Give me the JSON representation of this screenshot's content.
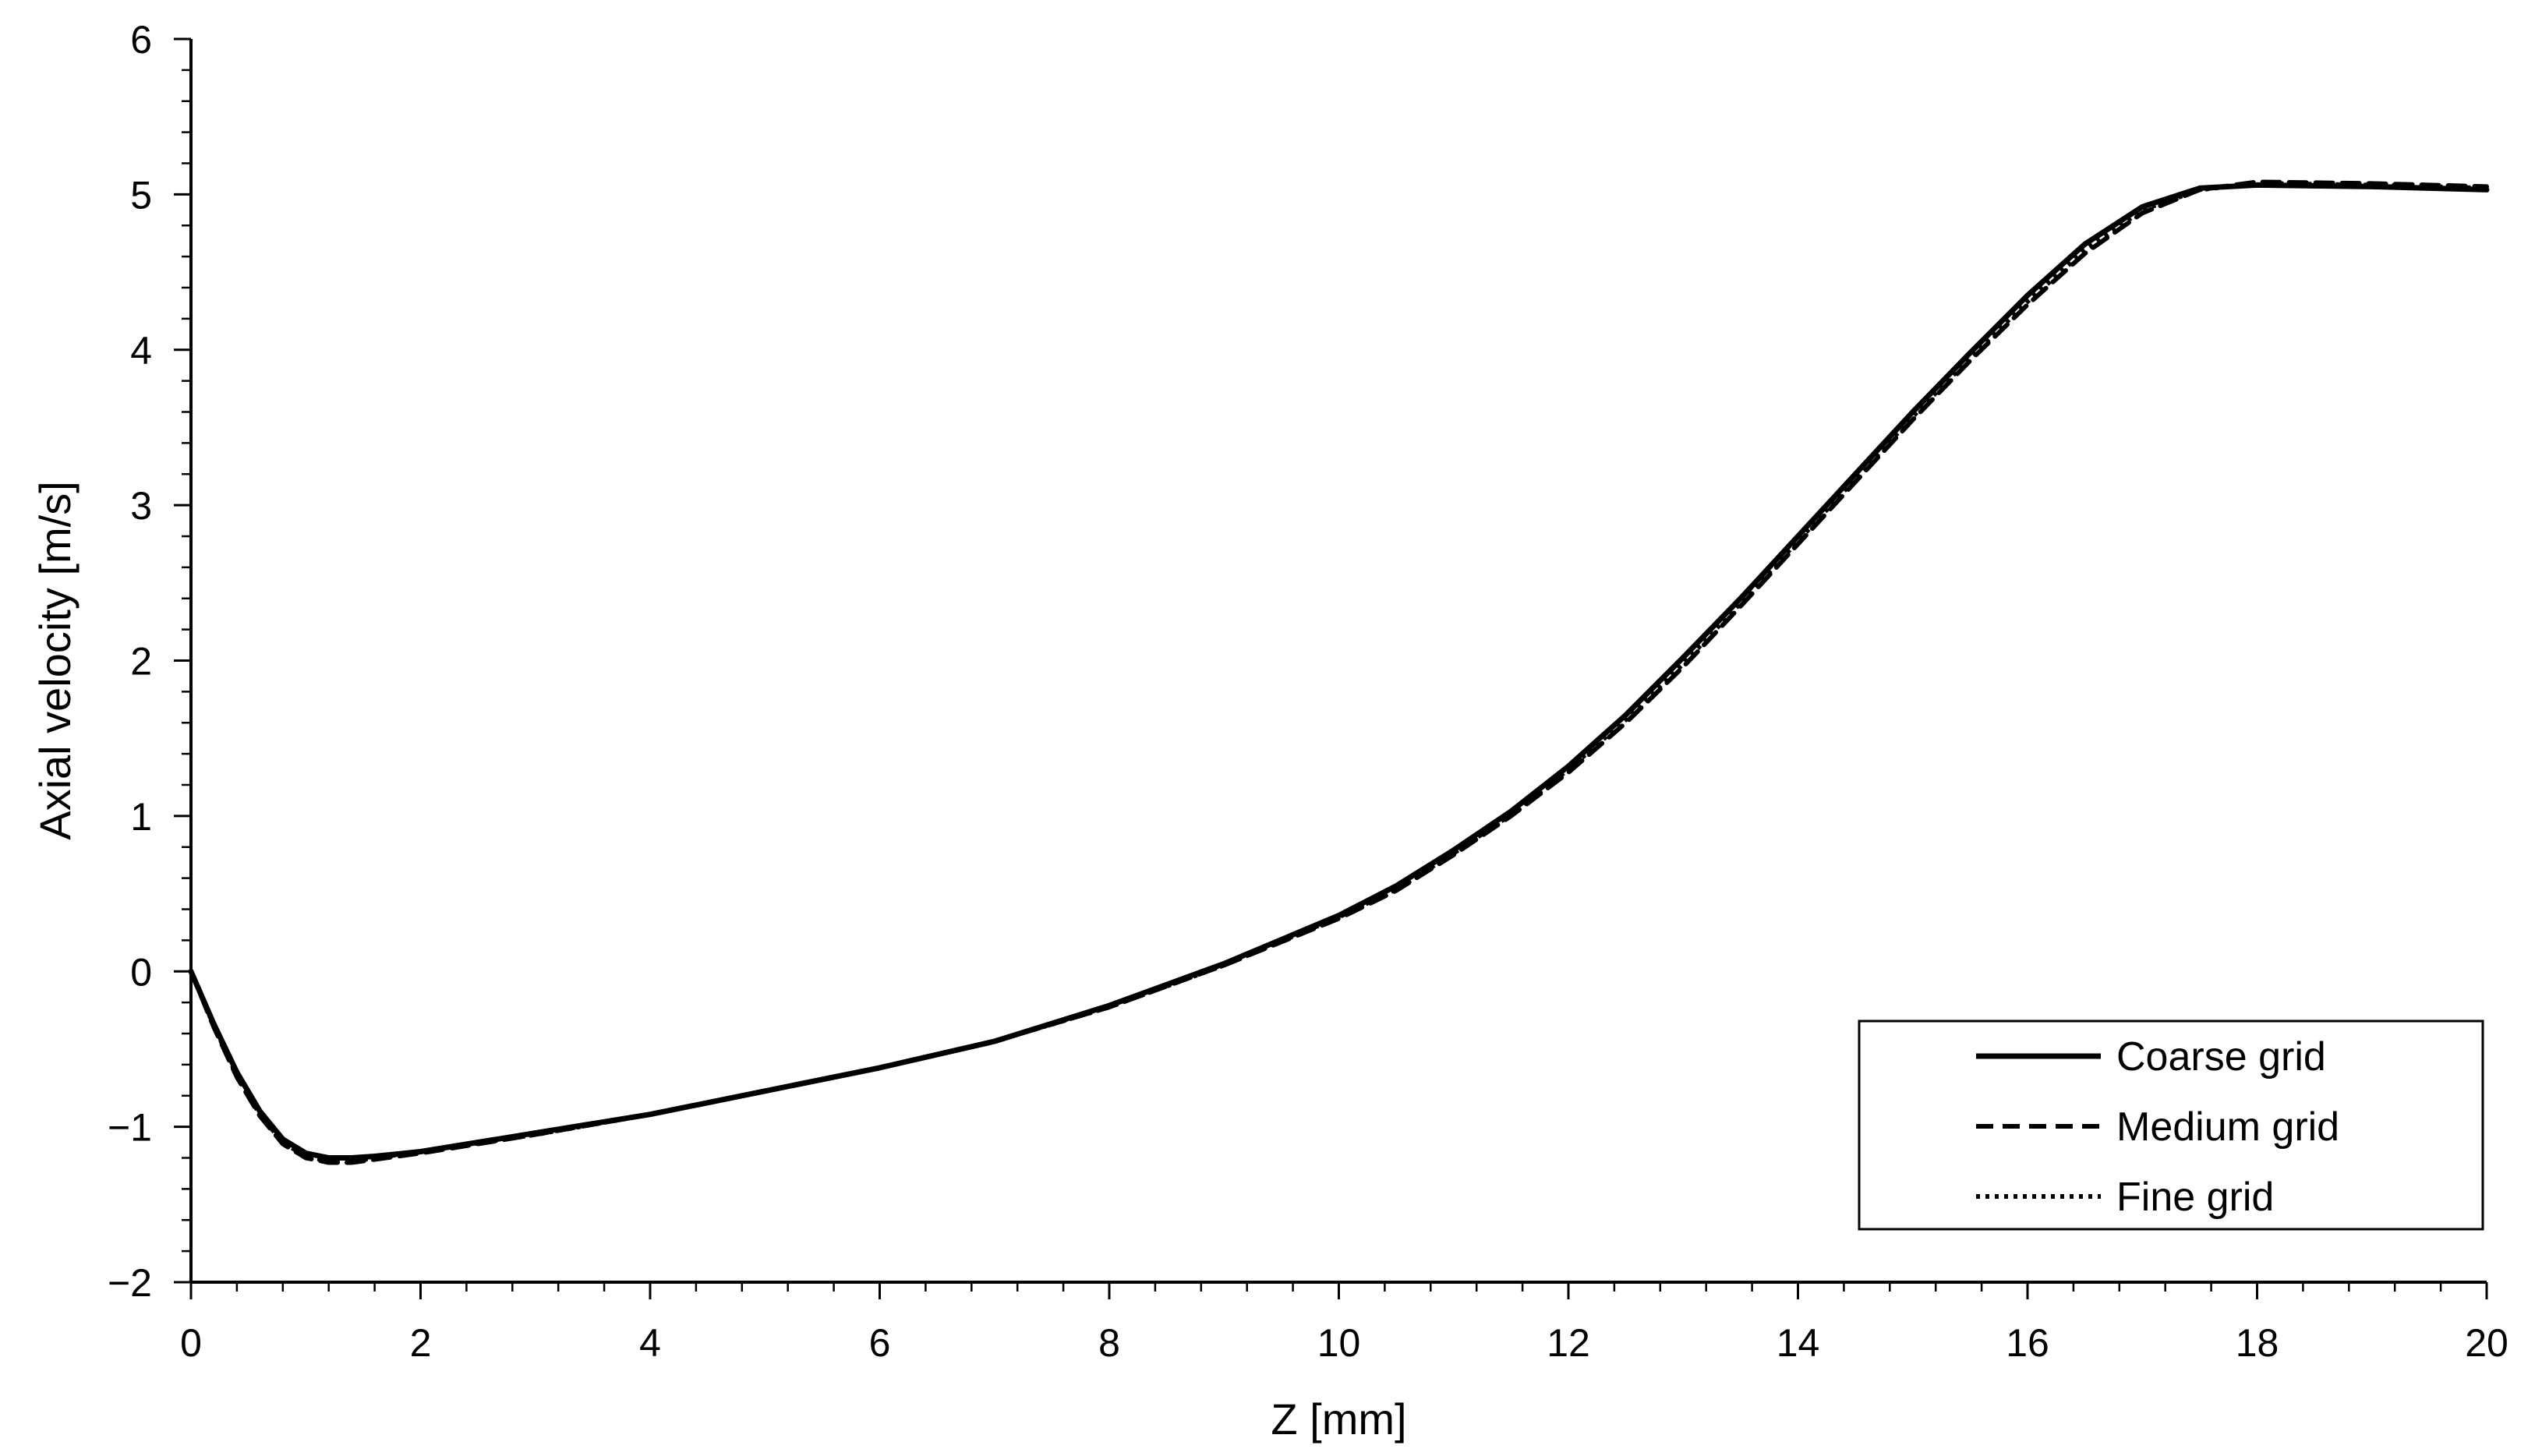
{
  "chart_data": {
    "type": "line",
    "xlabel": "Z [mm]",
    "ylabel": "Axial velocity [m/s]",
    "xlim": [
      0,
      20
    ],
    "ylim": [
      -2,
      6
    ],
    "x_ticks": [
      0,
      2,
      4,
      6,
      8,
      10,
      12,
      14,
      16,
      18,
      20
    ],
    "y_ticks": [
      -2,
      -1,
      0,
      1,
      2,
      3,
      4,
      5,
      6
    ],
    "x_tick_labels": [
      "0",
      "2",
      "4",
      "6",
      "8",
      "10",
      "12",
      "14",
      "16",
      "18",
      "20"
    ],
    "y_tick_labels": [
      "−2",
      "−1",
      "0",
      "1",
      "2",
      "3",
      "4",
      "5",
      "6"
    ],
    "grid": false,
    "legend_position": "bottom-right",
    "series": [
      {
        "name": "Coarse grid",
        "style": "solid",
        "color": "#000000",
        "x": [
          0,
          0.2,
          0.4,
          0.6,
          0.8,
          1.0,
          1.2,
          1.4,
          1.6,
          2.0,
          3.0,
          4.0,
          5.0,
          6.0,
          7.0,
          8.0,
          9.0,
          10.0,
          10.5,
          11.0,
          11.5,
          12.0,
          12.5,
          13.0,
          13.5,
          14.0,
          14.5,
          15.0,
          15.5,
          16.0,
          16.5,
          17.0,
          17.5,
          18.0,
          19.0,
          20.0
        ],
        "y": [
          0.0,
          -0.34,
          -0.65,
          -0.9,
          -1.08,
          -1.17,
          -1.2,
          -1.2,
          -1.19,
          -1.16,
          -1.04,
          -0.92,
          -0.77,
          -0.62,
          -0.45,
          -0.22,
          0.05,
          0.36,
          0.55,
          0.78,
          1.03,
          1.32,
          1.65,
          2.02,
          2.4,
          2.8,
          3.2,
          3.6,
          3.98,
          4.35,
          4.68,
          4.92,
          5.04,
          5.06,
          5.05,
          5.03
        ]
      },
      {
        "name": "Medium grid",
        "style": "dashed",
        "color": "#000000",
        "x": [
          0,
          0.2,
          0.4,
          0.6,
          0.8,
          1.0,
          1.2,
          1.4,
          1.6,
          2.0,
          3.0,
          4.0,
          5.0,
          6.0,
          7.0,
          8.0,
          9.0,
          10.0,
          10.5,
          11.0,
          11.5,
          12.0,
          12.5,
          13.0,
          13.5,
          14.0,
          14.5,
          15.0,
          15.5,
          16.0,
          16.5,
          17.0,
          17.5,
          18.0,
          19.0,
          20.0
        ],
        "y": [
          0.0,
          -0.36,
          -0.68,
          -0.93,
          -1.11,
          -1.2,
          -1.23,
          -1.23,
          -1.21,
          -1.17,
          -1.05,
          -0.92,
          -0.77,
          -0.62,
          -0.45,
          -0.23,
          0.04,
          0.34,
          0.52,
          0.75,
          1.0,
          1.28,
          1.6,
          1.96,
          2.35,
          2.75,
          3.15,
          3.55,
          3.93,
          4.29,
          4.62,
          4.88,
          5.03,
          5.08,
          5.07,
          5.05
        ]
      },
      {
        "name": "Fine grid",
        "style": "dotted",
        "color": "#000000",
        "x": [
          0,
          0.2,
          0.4,
          0.6,
          0.8,
          1.0,
          1.2,
          1.4,
          1.6,
          2.0,
          3.0,
          4.0,
          5.0,
          6.0,
          7.0,
          8.0,
          9.0,
          10.0,
          10.5,
          11.0,
          11.5,
          12.0,
          12.5,
          13.0,
          13.5,
          14.0,
          14.5,
          15.0,
          15.5,
          16.0,
          16.5,
          17.0,
          17.5,
          18.0,
          19.0,
          20.0
        ],
        "y": [
          0.0,
          -0.35,
          -0.67,
          -0.92,
          -1.1,
          -1.19,
          -1.22,
          -1.22,
          -1.2,
          -1.16,
          -1.05,
          -0.92,
          -0.77,
          -0.62,
          -0.45,
          -0.23,
          0.04,
          0.35,
          0.53,
          0.76,
          1.01,
          1.3,
          1.62,
          1.98,
          2.37,
          2.77,
          3.17,
          3.57,
          3.95,
          4.31,
          4.64,
          4.9,
          5.03,
          5.07,
          5.06,
          5.04
        ]
      }
    ]
  }
}
